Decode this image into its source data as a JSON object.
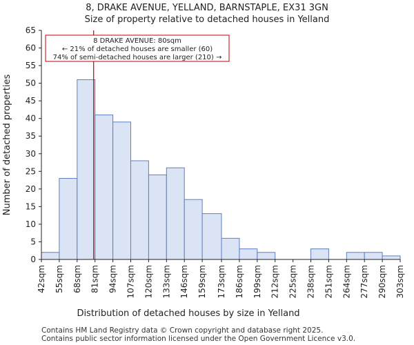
{
  "title_line1": "8, DRAKE AVENUE, YELLAND, BARNSTAPLE, EX31 3GN",
  "title_line2": "Size of property relative to detached houses in Yelland",
  "footer_line1": "Contains HM Land Registry data © Crown copyright and database right 2025.",
  "footer_line2": "Contains public sector information licensed under the Open Government Licence v3.0.",
  "chart_data": {
    "type": "bar",
    "title": "Size of property relative to detached houses in Yelland",
    "xlabel": "Distribution of detached houses by size in Yelland",
    "ylabel": "Number of detached properties",
    "bin_edges": [
      42,
      55,
      68,
      81,
      94,
      107,
      120,
      133,
      146,
      159,
      173,
      186,
      199,
      212,
      225,
      238,
      251,
      264,
      277,
      290,
      303
    ],
    "x_tick_labels": [
      "42sqm",
      "55sqm",
      "68sqm",
      "81sqm",
      "94sqm",
      "107sqm",
      "120sqm",
      "133sqm",
      "146sqm",
      "159sqm",
      "173sqm",
      "186sqm",
      "199sqm",
      "212sqm",
      "225sqm",
      "238sqm",
      "251sqm",
      "264sqm",
      "277sqm",
      "290sqm",
      "303sqm"
    ],
    "values": [
      2,
      23,
      51,
      41,
      39,
      28,
      24,
      26,
      17,
      13,
      6,
      3,
      2,
      0,
      0,
      3,
      0,
      2,
      2,
      1
    ],
    "ylim": [
      0,
      65
    ],
    "y_ticks": [
      0,
      5,
      10,
      15,
      20,
      25,
      30,
      35,
      40,
      45,
      50,
      55,
      60,
      65
    ],
    "bar_fill": "#dbe4f5",
    "bar_stroke": "#5b7fc0",
    "marker": {
      "value": 80,
      "color": "#c00000",
      "label_line1": "8 DRAKE AVENUE: 80sqm",
      "label_line2": "← 21% of detached houses are smaller (60)",
      "label_line3": "74% of semi-detached houses are larger (210) →"
    }
  }
}
